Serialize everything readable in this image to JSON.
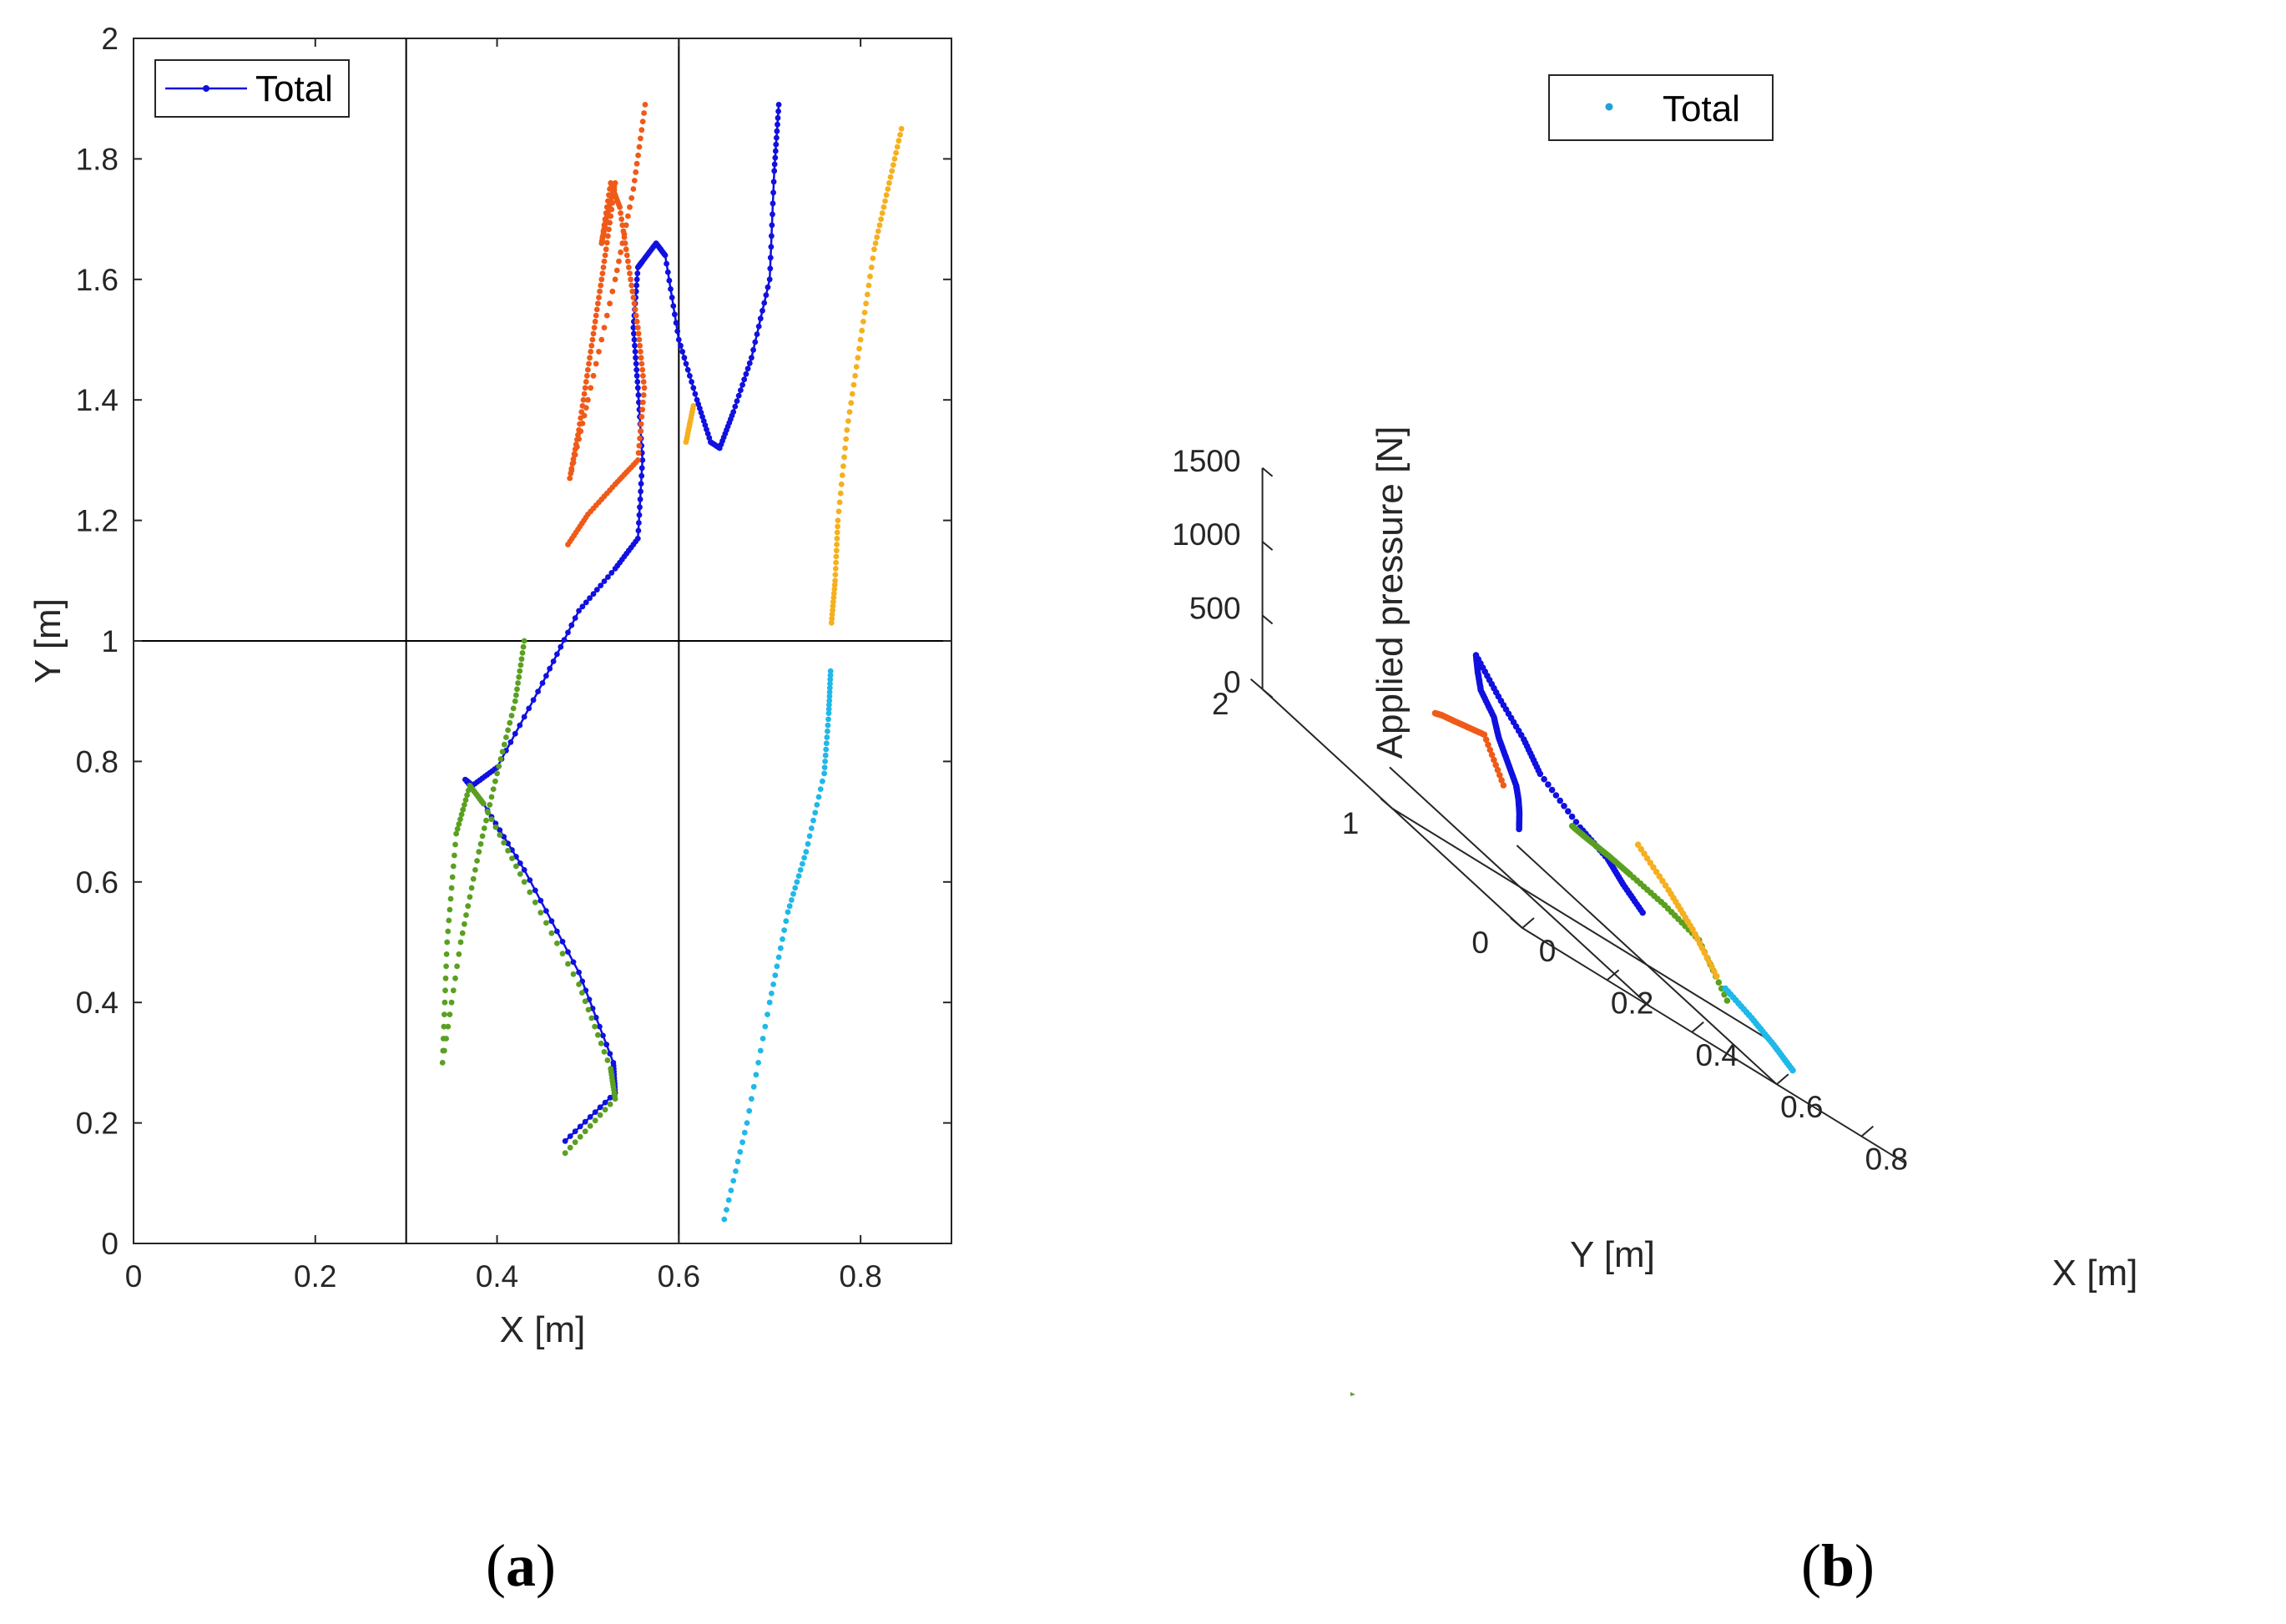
{
  "chart_data": [
    {
      "type": "line",
      "panel": "a",
      "panel_label": "(a)",
      "panel_label_text": "a",
      "xlabel": "X [m]",
      "ylabel": "Y [m]",
      "xlim": [
        0,
        0.9
      ],
      "ylim": [
        0,
        2
      ],
      "xticks": [
        0,
        0.2,
        0.4,
        0.6,
        0.8
      ],
      "xtick_labels": [
        "0",
        "0.2",
        "0.4",
        "0.6",
        "0.8"
      ],
      "yticks": [
        0,
        0.2,
        0.4,
        0.6,
        0.8,
        1,
        1.2,
        1.4,
        1.6,
        1.8,
        2
      ],
      "ytick_labels": [
        "0",
        "0.2",
        "0.4",
        "0.6",
        "0.8",
        "1",
        "1.2",
        "1.4",
        "1.6",
        "1.8",
        "2"
      ],
      "legend": {
        "label": "Total",
        "position": "top-left",
        "marker": "line-dot"
      },
      "region_lines": {
        "x": [
          0.3,
          0.6
        ],
        "y": [
          1
        ]
      },
      "series": [
        {
          "name": "Total",
          "color": "#1010e0",
          "x": [
            0.475,
            0.53,
            0.528,
            0.49,
            0.43,
            0.385,
            0.365,
            0.373,
            0.4,
            0.45,
            0.49,
            0.53,
            0.555,
            0.56,
            0.555,
            0.55,
            0.555,
            0.56,
            0.575,
            0.585,
            0.6,
            0.62,
            0.635,
            0.645,
            0.66,
            0.68,
            0.7,
            0.705,
            0.71
          ],
          "y": [
            0.17,
            0.25,
            0.3,
            0.45,
            0.62,
            0.73,
            0.77,
            0.76,
            0.79,
            0.93,
            1.05,
            1.12,
            1.17,
            1.3,
            1.42,
            1.52,
            1.62,
            1.63,
            1.66,
            1.64,
            1.5,
            1.4,
            1.33,
            1.32,
            1.38,
            1.47,
            1.6,
            1.78,
            1.89
          ]
        },
        {
          "name": "Green",
          "color": "#5aa020",
          "x": [
            0.475,
            0.53,
            0.525,
            0.49,
            0.43,
            0.385,
            0.37,
            0.355,
            0.345,
            0.34,
            0.36,
            0.38,
            0.4,
            0.42,
            0.43
          ],
          "y": [
            0.15,
            0.24,
            0.29,
            0.43,
            0.6,
            0.73,
            0.76,
            0.68,
            0.5,
            0.3,
            0.5,
            0.65,
            0.78,
            0.9,
            1.0
          ]
        },
        {
          "name": "Orange-red",
          "color": "#f05a18",
          "x": [
            0.478,
            0.5,
            0.53,
            0.555,
            0.562,
            0.555,
            0.545,
            0.535,
            0.525,
            0.515,
            0.52,
            0.53,
            0.52,
            0.51,
            0.5,
            0.49,
            0.48,
            0.5,
            0.53,
            0.55,
            0.563
          ],
          "y": [
            1.16,
            1.21,
            1.26,
            1.3,
            1.42,
            1.52,
            1.62,
            1.72,
            1.76,
            1.66,
            1.7,
            1.76,
            1.65,
            1.55,
            1.45,
            1.35,
            1.27,
            1.4,
            1.6,
            1.75,
            1.89
          ]
        },
        {
          "name": "Yellow-small",
          "color": "#f5b020",
          "x": [
            0.608,
            0.612,
            0.616
          ],
          "y": [
            1.33,
            1.36,
            1.39
          ]
        },
        {
          "name": "Yellow",
          "color": "#f5b020",
          "x": [
            0.768,
            0.772,
            0.775,
            0.785,
            0.8,
            0.815,
            0.83,
            0.845
          ],
          "y": [
            1.03,
            1.1,
            1.2,
            1.35,
            1.5,
            1.65,
            1.75,
            1.85
          ]
        },
        {
          "name": "Cyan",
          "color": "#20b8e8",
          "x": [
            0.65,
            0.675,
            0.7,
            0.72,
            0.74,
            0.76,
            0.765,
            0.767
          ],
          "y": [
            0.04,
            0.2,
            0.4,
            0.55,
            0.65,
            0.78,
            0.88,
            0.95
          ]
        }
      ]
    },
    {
      "type": "scatter",
      "panel": "b",
      "panel_label": "(b)",
      "panel_label_text": "b",
      "projection": "3d",
      "xlabel": "X [m]",
      "ylabel": "Y [m]",
      "zlabel": "Applied pressure [N]",
      "xlim": [
        0,
        0.9
      ],
      "ylim": [
        0,
        2
      ],
      "zlim": [
        0,
        1500
      ],
      "xticks": [
        0,
        0.2,
        0.4,
        0.6,
        0.8
      ],
      "xtick_labels": [
        "0",
        "0.2",
        "0.4",
        "0.6",
        "0.8"
      ],
      "yticks": [
        0,
        1,
        2
      ],
      "ytick_labels": [
        "0",
        "1",
        "2"
      ],
      "zticks": [
        0,
        500,
        1000,
        1500
      ],
      "ztick_labels": [
        "0",
        "500",
        "1000",
        "1500"
      ],
      "legend": {
        "label": "Total",
        "position": "top-center",
        "marker": "dot"
      },
      "region_lines": {
        "x": [
          0.3,
          0.6
        ],
        "y": [
          1
        ]
      },
      "series": [
        {
          "name": "Total",
          "color": "#1010e0",
          "x": [
            0.4,
            0.41,
            0.42,
            0.43,
            0.44,
            0.45,
            0.46,
            0.46,
            0.465,
            0.47,
            0.48,
            0.5,
            0.52,
            0.55,
            0.57,
            0.575,
            0.575
          ],
          "y": [
            1.33,
            1.36,
            1.4,
            1.45,
            1.55,
            1.65,
            1.72,
            1.82,
            1.86,
            1.89,
            1.75,
            1.62,
            1.56,
            1.35,
            1.2,
            1.1,
            0.95
          ],
          "z": [
            300,
            400,
            480,
            550,
            650,
            750,
            850,
            950,
            1050,
            1150,
            1000,
            850,
            700,
            560,
            500,
            420,
            350
          ]
        },
        {
          "name": "Green",
          "color": "#5aa020",
          "x": [
            0.47,
            0.49,
            0.51,
            0.53,
            0.55,
            0.57,
            0.575
          ],
          "y": [
            1.15,
            1.1,
            1.0,
            0.9,
            0.7,
            0.5,
            0.3
          ],
          "z": [
            590,
            580,
            580,
            570,
            560,
            520,
            280
          ]
        },
        {
          "name": "Orange-red",
          "color": "#f05a18",
          "x": [
            0.3,
            0.31,
            0.33,
            0.35,
            0.37,
            0.4
          ],
          "y": [
            1.65,
            1.63,
            1.6,
            1.55,
            1.5,
            1.45
          ],
          "z": [
            650,
            670,
            690,
            720,
            750,
            500
          ]
        },
        {
          "name": "Yellow",
          "color": "#f5b020",
          "x": [
            0.78,
            0.8,
            0.82,
            0.84
          ],
          "y": [
            1.05,
            1.3,
            1.55,
            1.85
          ],
          "z": [
            200,
            350,
            450,
            550
          ]
        },
        {
          "name": "Cyan",
          "color": "#20b8e8",
          "x": [
            0.65,
            0.7,
            0.74,
            0.77
          ],
          "y": [
            0.04,
            0.35,
            0.65,
            0.95
          ],
          "z": [
            150,
            160,
            170,
            180
          ]
        }
      ]
    }
  ]
}
